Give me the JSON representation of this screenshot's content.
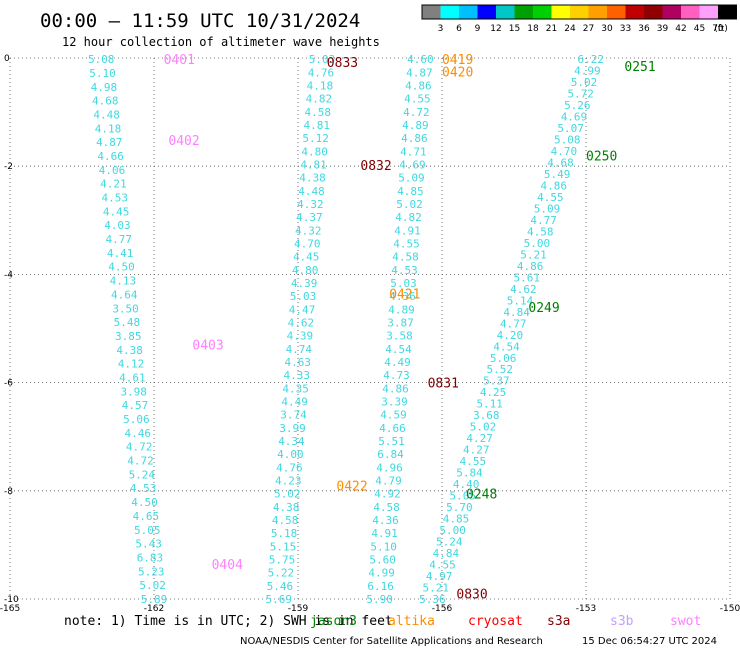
{
  "header": {
    "title": "00:00 – 11:59 UTC 10/31/2024",
    "subtitle": "12 hour collection of altimeter wave heights"
  },
  "colorbar": {
    "ticks": [
      "3",
      "6",
      "9",
      "12",
      "15",
      "18",
      "21",
      "24",
      "27",
      "30",
      "33",
      "36",
      "39",
      "42",
      "45",
      "70"
    ],
    "unit": "(ft)",
    "colors": [
      "#808080",
      "#00ffff",
      "#00bfff",
      "#0000ff",
      "#00c8c8",
      "#00a000",
      "#00d000",
      "#ffff00",
      "#ffd000",
      "#ffa000",
      "#ff6000",
      "#c00000",
      "#900000",
      "#b00060",
      "#ff60c0",
      "#ffa0ff",
      "#000000"
    ]
  },
  "footer": {
    "note": "note: 1) Time is in UTC; 2) SWH is in feet",
    "legend": [
      {
        "label": "jason3",
        "color": "#008000"
      },
      {
        "label": "altika",
        "color": "#ff8c00"
      },
      {
        "label": "cryosat",
        "color": "#ff0000"
      },
      {
        "label": "s3a",
        "color": "#800000"
      },
      {
        "label": "s3b",
        "color": "#c0a0ff"
      },
      {
        "label": "swot",
        "color": "#ff80ff"
      }
    ],
    "credit": "NOAA/NESDIS Center for Satellite Applications and Research",
    "timestamp": "15 Dec 06:54:27 UTC 2024"
  },
  "chart_data": {
    "type": "scatter",
    "xlim": [
      -165,
      -150
    ],
    "ylim": [
      -10,
      0
    ],
    "x_ticks": [
      -165,
      -162,
      -159,
      -156,
      -153,
      -150
    ],
    "y_ticks": [
      0,
      -2,
      -4,
      -6,
      -8,
      -10
    ],
    "grid": true,
    "value_color": "#40d8e0",
    "passes": [
      {
        "name": "0401",
        "color": "#ff80ff",
        "label_pos": [
          -161.8,
          -0.02
        ]
      },
      {
        "name": "0402",
        "color": "#ff80ff",
        "label_pos": [
          -161.7,
          -1.52
        ]
      },
      {
        "name": "0403",
        "color": "#ff80ff",
        "label_pos": [
          -161.2,
          -5.3
        ]
      },
      {
        "name": "0404",
        "color": "#ff80ff",
        "label_pos": [
          -160.8,
          -9.35
        ]
      },
      {
        "name": "0833",
        "color": "#800000",
        "label_pos": [
          -158.4,
          -0.07
        ]
      },
      {
        "name": "0832",
        "color": "#800000",
        "label_pos": [
          -157.7,
          -1.98
        ]
      },
      {
        "name": "0831",
        "color": "#800000",
        "label_pos": [
          -156.3,
          -6.0
        ]
      },
      {
        "name": "0830",
        "color": "#800000",
        "label_pos": [
          -155.7,
          -9.9
        ]
      },
      {
        "name": "0419",
        "color": "#ff8c00",
        "label_pos": [
          -156.0,
          -0.02
        ]
      },
      {
        "name": "0420",
        "color": "#ff8c00",
        "label_pos": [
          -156.0,
          -0.25
        ]
      },
      {
        "name": "0421",
        "color": "#ff8c00",
        "label_pos": [
          -157.1,
          -4.35
        ]
      },
      {
        "name": "0422",
        "color": "#ff8c00",
        "label_pos": [
          -158.2,
          -7.9
        ]
      },
      {
        "name": "0251",
        "color": "#008000",
        "label_pos": [
          -152.2,
          -0.15
        ]
      },
      {
        "name": "0250",
        "color": "#008000",
        "label_pos": [
          -153.0,
          -1.8
        ]
      },
      {
        "name": "0249",
        "color": "#008000",
        "label_pos": [
          -154.2,
          -4.6
        ]
      },
      {
        "name": "0248",
        "color": "#008000",
        "label_pos": [
          -155.5,
          -8.05
        ]
      }
    ],
    "tracks": [
      {
        "x0": -163.1,
        "y0": -0.02,
        "x1": -162.0,
        "y1": -10,
        "values": [
          "5.08",
          "5.10",
          "4.98",
          "4.68",
          "4.48",
          "4.18",
          "4.87",
          "4.66",
          "4.06",
          "4.21",
          "4.53",
          "4.45",
          "4.03",
          "4.77",
          "4.41",
          "4.50",
          "4.13",
          "4.64",
          "3.50",
          "5.48",
          "3.85",
          "4.38",
          "4.12",
          "4.61",
          "3.98",
          "4.57",
          "5.06",
          "4.46",
          "4.72",
          "4.72",
          "5.24",
          "4.53",
          "4.50",
          "4.65",
          "5.05",
          "5.43",
          "6.83",
          "5.23",
          "5.02",
          "5.89"
        ]
      },
      {
        "x0": -158.5,
        "y0": -0.02,
        "x1": -159.4,
        "y1": -10,
        "values": [
          "5.03",
          "4.76",
          "4.18",
          "4.82",
          "4.58",
          "4.81",
          "5.12",
          "4.80",
          "4.81",
          "4.38",
          "4.48",
          "4.32",
          "4.37",
          "4.32",
          "4.70",
          "4.45",
          "4.80",
          "4.39",
          "5.03",
          "4.47",
          "4.62",
          "4.39",
          "4.74",
          "4.63",
          "4.33",
          "4.35",
          "4.49",
          "3.74",
          "3.99",
          "4.34",
          "4.00",
          "4.76",
          "4.23",
          "5.02",
          "4.38",
          "4.58",
          "5.18",
          "5.15",
          "5.75",
          "5.22",
          "5.46",
          "5.69"
        ]
      },
      {
        "x0": -156.45,
        "y0": -0.02,
        "x1": -157.3,
        "y1": -10,
        "values": [
          "4.60",
          "4.87",
          "4.86",
          "4.55",
          "4.72",
          "4.89",
          "4.86",
          "4.71",
          "4.69",
          "5.09",
          "4.85",
          "5.02",
          "4.82",
          "4.91",
          "4.55",
          "4.58",
          "4.53",
          "5.03",
          "4.36",
          "4.89",
          "3.87",
          "3.58",
          "4.54",
          "4.49",
          "4.73",
          "4.86",
          "3.39",
          "4.59",
          "4.66",
          "5.51",
          "6.84",
          "4.96",
          "4.79",
          "4.92",
          "4.58",
          "4.36",
          "4.91",
          "5.10",
          "5.60",
          "4.99",
          "6.16",
          "5.90"
        ]
      },
      {
        "x0": -152.9,
        "y0": -0.02,
        "x1": -156.2,
        "y1": -10,
        "values": [
          "6.22",
          "4.99",
          "5.02",
          "5.72",
          "5.26",
          "4.69",
          "5.07",
          "5.08",
          "4.70",
          "4.68",
          "5.49",
          "4.86",
          "4.55",
          "5.09",
          "4.77",
          "4.58",
          "5.00",
          "5.21",
          "4.86",
          "5.61",
          "4.62",
          "5.14",
          "4.84",
          "4.77",
          "4.20",
          "4.54",
          "5.06",
          "5.52",
          "5.37",
          "4.25",
          "5.11",
          "3.68",
          "5.02",
          "4.27",
          "4.27",
          "4.55",
          "5.84",
          "4.40",
          "5.05",
          "5.70",
          "4.85",
          "5.00",
          "5.24",
          "4.84",
          "4.55",
          "4.97",
          "5.21",
          "5.36"
        ]
      }
    ]
  }
}
